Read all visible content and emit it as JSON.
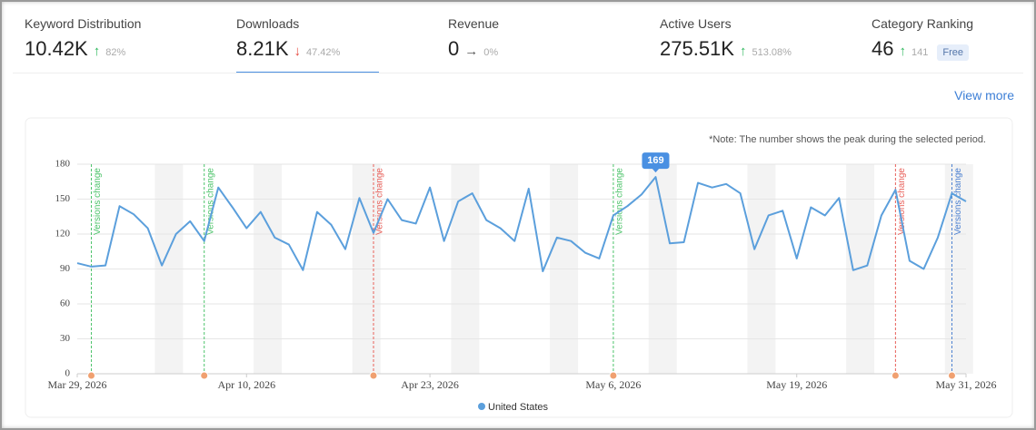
{
  "stats": [
    {
      "label": "Keyword Distribution",
      "value": "10.42K",
      "trend": "up",
      "change": "82%"
    },
    {
      "label": "Downloads",
      "value": "8.21K",
      "trend": "down",
      "change": "47.42%",
      "selected": true
    },
    {
      "label": "Revenue",
      "value": "0",
      "trend": "flat",
      "change": "0%"
    },
    {
      "label": "Active Users",
      "value": "275.51K",
      "trend": "up",
      "change": "513.08%"
    },
    {
      "label": "Category Ranking",
      "value": "46",
      "trend": "up",
      "change": "141",
      "badge": "Free"
    }
  ],
  "view_more": "View more",
  "chart_data": {
    "type": "line",
    "note": "*Note: The number shows the peak during the selected period.",
    "x": [
      "2026-03-29",
      "2026-03-30",
      "2026-03-31",
      "2026-04-01",
      "2026-04-02",
      "2026-04-03",
      "2026-04-04",
      "2026-04-05",
      "2026-04-06",
      "2026-04-07",
      "2026-04-08",
      "2026-04-09",
      "2026-04-10",
      "2026-04-11",
      "2026-04-12",
      "2026-04-13",
      "2026-04-14",
      "2026-04-15",
      "2026-04-16",
      "2026-04-17",
      "2026-04-18",
      "2026-04-19",
      "2026-04-20",
      "2026-04-21",
      "2026-04-22",
      "2026-04-23",
      "2026-04-24",
      "2026-04-25",
      "2026-04-26",
      "2026-04-27",
      "2026-04-28",
      "2026-04-29",
      "2026-04-30",
      "2026-05-01",
      "2026-05-02",
      "2026-05-03",
      "2026-05-04",
      "2026-05-05",
      "2026-05-06",
      "2026-05-07",
      "2026-05-08",
      "2026-05-09",
      "2026-05-10",
      "2026-05-11",
      "2026-05-12",
      "2026-05-13",
      "2026-05-14",
      "2026-05-15",
      "2026-05-16",
      "2026-05-17",
      "2026-05-18",
      "2026-05-19",
      "2026-05-20",
      "2026-05-21",
      "2026-05-22",
      "2026-05-23",
      "2026-05-24",
      "2026-05-25",
      "2026-05-26",
      "2026-05-27",
      "2026-05-28",
      "2026-05-29",
      "2026-05-30",
      "2026-05-31"
    ],
    "series": [
      {
        "name": "United States",
        "color": "#5b9fdc",
        "values": [
          95,
          92,
          93,
          144,
          137,
          125,
          93,
          120,
          131,
          114,
          160,
          143,
          125,
          139,
          117,
          111,
          89,
          139,
          128,
          107,
          151,
          121,
          150,
          132,
          129,
          160,
          114,
          148,
          155,
          132,
          125,
          114,
          159,
          88,
          117,
          114,
          104,
          99,
          136,
          144,
          154,
          169,
          112,
          113,
          164,
          160,
          163,
          155,
          107,
          136,
          140,
          99,
          143,
          136,
          151,
          89,
          93,
          136,
          158,
          97,
          90,
          117,
          155,
          148
        ]
      }
    ],
    "xlim": [
      "2026-03-29",
      "2026-05-31"
    ],
    "xticks": [
      {
        "value": "2026-03-29",
        "label": "Mar 29, 2026"
      },
      {
        "value": "2026-04-10",
        "label": "Apr 10, 2026"
      },
      {
        "value": "2026-04-23",
        "label": "Apr 23, 2026"
      },
      {
        "value": "2026-05-06",
        "label": "May 6, 2026"
      },
      {
        "value": "2026-05-19",
        "label": "May 19, 2026"
      },
      {
        "value": "2026-05-31",
        "label": "May 31, 2026"
      }
    ],
    "ylim": [
      0,
      180
    ],
    "yticks": [
      0,
      30,
      60,
      90,
      120,
      150,
      180
    ],
    "grid": true,
    "annotations": [
      {
        "x": "2026-03-30",
        "label": "Versions change",
        "color": "#4cc36a"
      },
      {
        "x": "2026-04-07",
        "label": "Versions change",
        "color": "#4cc36a"
      },
      {
        "x": "2026-04-19",
        "label": "Versions change",
        "color": "#e8605a"
      },
      {
        "x": "2026-05-06",
        "label": "Versions change",
        "color": "#4cc36a"
      },
      {
        "x": "2026-05-26",
        "label": "Versions change",
        "color": "#e8605a"
      },
      {
        "x": "2026-05-30",
        "label": "Versions change",
        "color": "#4a7fd0"
      }
    ]
  }
}
